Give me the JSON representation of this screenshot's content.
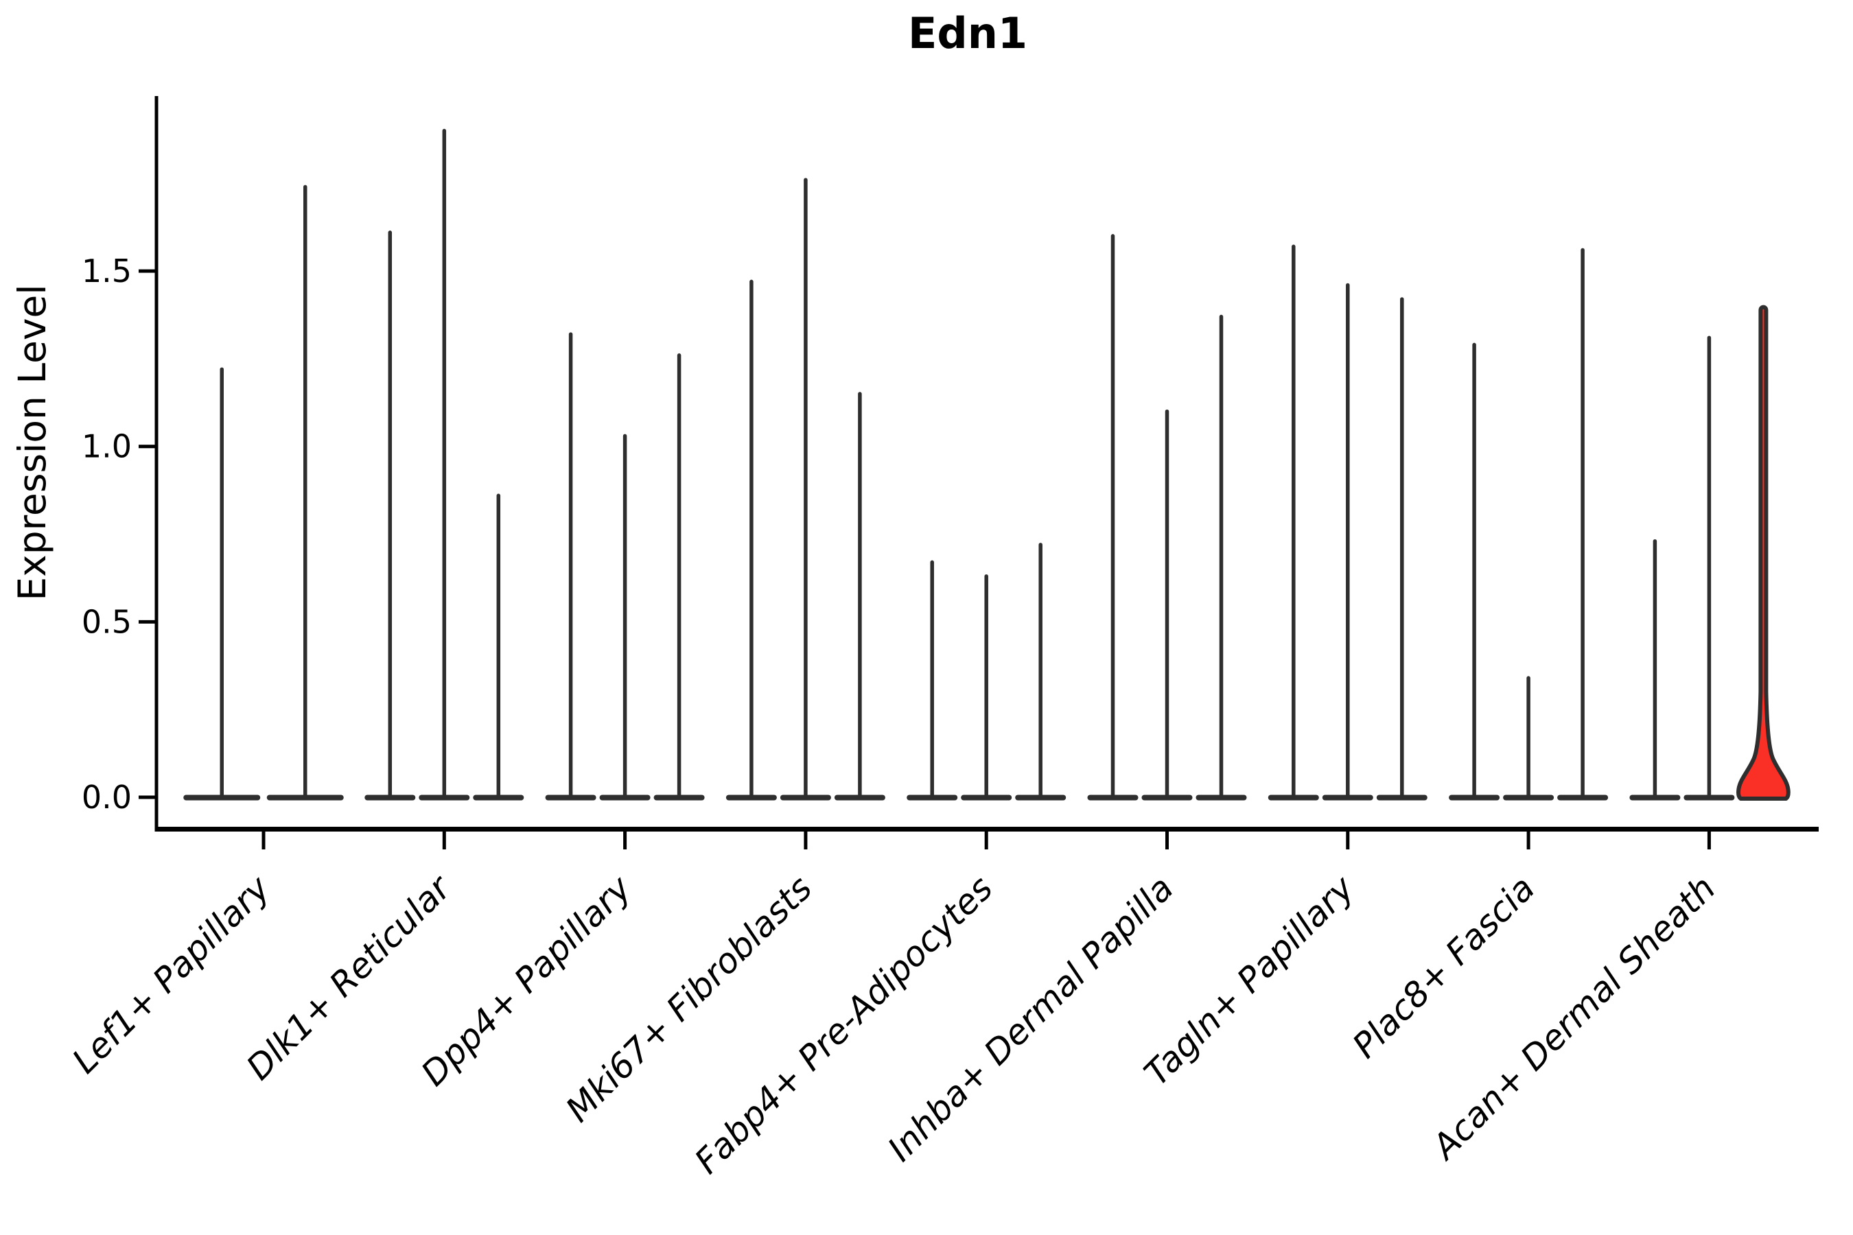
{
  "title": "Edn1",
  "chart_data": {
    "type": "violin",
    "title": "Edn1",
    "xlabel": "",
    "ylabel": "Expression Level",
    "ylim": [
      -0.09,
      2.0
    ],
    "yticks": [
      0.0,
      0.5,
      1.0,
      1.5
    ],
    "ytick_labels": [
      "0.0",
      "0.5",
      "1.0",
      "1.5"
    ],
    "grid": false,
    "legend": "none",
    "note": "Each category shows narrow violins: a dense flat base at expression 0 with a thin spike reaching the listed maximum expression value. The last violin of 'Acan+ Dermal Sheath' is highlighted red with a wide bell-shaped body near 0-0.2.",
    "categories": [
      "Lef1+ Papillary",
      "Dlk1+ Reticular",
      "Dpp4+ Papillary",
      "Mki67+ Fibroblasts",
      "Fabp4+ Pre-Adipocytes",
      "Inhba+ Dermal Papilla",
      "Tagln+ Papillary",
      "Plac8+ Fascia",
      "Acan+ Dermal Sheath"
    ],
    "groups": [
      {
        "label": "Lef1+ Papillary",
        "values": [
          1.22,
          1.74
        ]
      },
      {
        "label": "Dlk1+ Reticular",
        "values": [
          1.61,
          1.9,
          0.86
        ]
      },
      {
        "label": "Dpp4+ Papillary",
        "values": [
          1.32,
          1.03,
          1.26
        ]
      },
      {
        "label": "Mki67+ Fibroblasts",
        "values": [
          1.47,
          1.76,
          1.15
        ]
      },
      {
        "label": "Fabp4+ Pre-Adipocytes",
        "values": [
          0.67,
          0.63,
          0.72
        ]
      },
      {
        "label": "Inhba+ Dermal Papilla",
        "values": [
          1.6,
          1.1,
          1.37
        ]
      },
      {
        "label": "Tagln+ Papillary",
        "values": [
          1.57,
          1.46,
          1.42
        ]
      },
      {
        "label": "Plac8+ Fascia",
        "values": [
          1.29,
          0.34,
          1.56
        ]
      },
      {
        "label": "Acan+ Dermal Sheath",
        "values": [
          0.73,
          1.31,
          1.4
        ],
        "highlight_index": 2
      }
    ],
    "colors": {
      "axis": "#000000",
      "violin_outline": "#2e2e2e",
      "violin_fill": "#ffffff",
      "highlight_fill": "#fa2f25",
      "text": "#000000",
      "background": "#ffffff"
    }
  }
}
